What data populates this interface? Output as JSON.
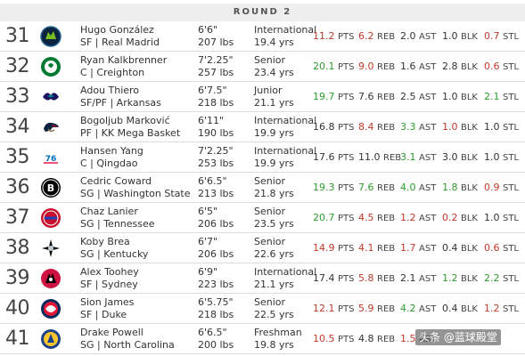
{
  "round_label": "ROUND 2",
  "colors": {
    "neutral": "#333333",
    "red": "#c0392b",
    "green": "#2e9b2e"
  },
  "picks": [
    {
      "pick": "31",
      "team_logo": "timberwolves-logo-icon",
      "name": "Hugo González",
      "pos_school": "SF | Real Madrid",
      "height": "6'6\"",
      "weight": "207 lbs",
      "class": "International",
      "age": "19.4 yrs",
      "stats": {
        "pts": {
          "v": "11.2",
          "c": "r"
        },
        "reb": {
          "v": "6.2",
          "c": "r"
        },
        "ast": {
          "v": "2.0",
          "c": "n"
        },
        "blk": {
          "v": "1.0",
          "c": "n"
        },
        "stl": {
          "v": "0.7",
          "c": "r"
        }
      }
    },
    {
      "pick": "32",
      "team_logo": "celtics-logo-icon",
      "name": "Ryan Kalkbrenner",
      "pos_school": "C | Creighton",
      "height": "7'2.25\"",
      "weight": "257 lbs",
      "class": "Senior",
      "age": "23.4 yrs",
      "stats": {
        "pts": {
          "v": "20.1",
          "c": "g"
        },
        "reb": {
          "v": "9.0",
          "c": "r"
        },
        "ast": {
          "v": "1.6",
          "c": "n"
        },
        "blk": {
          "v": "2.8",
          "c": "n"
        },
        "stl": {
          "v": "0.6",
          "c": "r"
        }
      }
    },
    {
      "pick": "33",
      "team_logo": "hornets-logo-icon",
      "name": "Adou Thiero",
      "pos_school": "SF/PF | Arkansas",
      "height": "6'7.5\"",
      "weight": "218 lbs",
      "class": "Junior",
      "age": "21.1 yrs",
      "stats": {
        "pts": {
          "v": "19.7",
          "c": "g"
        },
        "reb": {
          "v": "7.6",
          "c": "n"
        },
        "ast": {
          "v": "2.5",
          "c": "n"
        },
        "blk": {
          "v": "1.0",
          "c": "n"
        },
        "stl": {
          "v": "2.1",
          "c": "g"
        }
      }
    },
    {
      "pick": "34",
      "team_logo": "pelicans-logo-icon",
      "name": "Bogoljub Marković",
      "pos_school": "PF | KK Mega Basket",
      "height": "6'11\"",
      "weight": "190 lbs",
      "class": "International",
      "age": "19.9 yrs",
      "stats": {
        "pts": {
          "v": "16.8",
          "c": "n"
        },
        "reb": {
          "v": "8.4",
          "c": "r"
        },
        "ast": {
          "v": "3.3",
          "c": "g"
        },
        "blk": {
          "v": "1.0",
          "c": "r"
        },
        "stl": {
          "v": "1.0",
          "c": "n"
        }
      }
    },
    {
      "pick": "35",
      "team_logo": "76ers-logo-icon",
      "name": "Hansen Yang",
      "pos_school": "C | Qingdao",
      "height": "7'2.25\"",
      "weight": "253 lbs",
      "class": "International",
      "age": "19.9 yrs",
      "stats": {
        "pts": {
          "v": "17.6",
          "c": "n"
        },
        "reb": {
          "v": "11.0",
          "c": "n"
        },
        "ast": {
          "v": "3.1",
          "c": "g"
        },
        "blk": {
          "v": "3.0",
          "c": "n"
        },
        "stl": {
          "v": "1.0",
          "c": "n"
        }
      }
    },
    {
      "pick": "36",
      "team_logo": "nets-logo-icon",
      "name": "Cedric Coward",
      "pos_school": "SG | Washington State",
      "height": "6'6.5\"",
      "weight": "213 lbs",
      "class": "Senior",
      "age": "21.8 yrs",
      "stats": {
        "pts": {
          "v": "19.3",
          "c": "g"
        },
        "reb": {
          "v": "7.6",
          "c": "g"
        },
        "ast": {
          "v": "4.0",
          "c": "g"
        },
        "blk": {
          "v": "1.8",
          "c": "g"
        },
        "stl": {
          "v": "0.9",
          "c": "r"
        }
      }
    },
    {
      "pick": "37",
      "team_logo": "pistons-logo-icon",
      "name": "Chaz Lanier",
      "pos_school": "SG | Tennessee",
      "height": "6'5\"",
      "weight": "206 lbs",
      "class": "Senior",
      "age": "23.5 yrs",
      "stats": {
        "pts": {
          "v": "20.7",
          "c": "g"
        },
        "reb": {
          "v": "4.5",
          "c": "r"
        },
        "ast": {
          "v": "1.2",
          "c": "r"
        },
        "blk": {
          "v": "0.2",
          "c": "r"
        },
        "stl": {
          "v": "1.0",
          "c": "n"
        }
      }
    },
    {
      "pick": "38",
      "team_logo": "spurs-logo-icon",
      "name": "Koby Brea",
      "pos_school": "SG | Kentucky",
      "height": "6'7\"",
      "weight": "206 lbs",
      "class": "Senior",
      "age": "22.6 yrs",
      "stats": {
        "pts": {
          "v": "14.9",
          "c": "r"
        },
        "reb": {
          "v": "4.1",
          "c": "r"
        },
        "ast": {
          "v": "1.7",
          "c": "r"
        },
        "blk": {
          "v": "0.4",
          "c": "n"
        },
        "stl": {
          "v": "0.6",
          "c": "r"
        }
      }
    },
    {
      "pick": "39",
      "team_logo": "raptors-logo-icon",
      "name": "Alex Toohey",
      "pos_school": "SF | Sydney",
      "height": "6'9\"",
      "weight": "223 lbs",
      "class": "International",
      "age": "21.1 yrs",
      "stats": {
        "pts": {
          "v": "17.4",
          "c": "n"
        },
        "reb": {
          "v": "5.8",
          "c": "r"
        },
        "ast": {
          "v": "2.1",
          "c": "n"
        },
        "blk": {
          "v": "1.2",
          "c": "g"
        },
        "stl": {
          "v": "2.2",
          "c": "g"
        }
      }
    },
    {
      "pick": "40",
      "team_logo": "wizards-logo-icon",
      "name": "Sion James",
      "pos_school": "SF | Duke",
      "height": "6'5.75\"",
      "weight": "218 lbs",
      "class": "Senior",
      "age": "22.5 yrs",
      "stats": {
        "pts": {
          "v": "12.1",
          "c": "r"
        },
        "reb": {
          "v": "5.9",
          "c": "r"
        },
        "ast": {
          "v": "4.2",
          "c": "g"
        },
        "blk": {
          "v": "0.4",
          "c": "n"
        },
        "stl": {
          "v": "1.2",
          "c": "r"
        }
      }
    },
    {
      "pick": "41",
      "team_logo": "warriors-logo-icon",
      "name": "Drake Powell",
      "pos_school": "SG | North Carolina",
      "height": "6'6.5\"",
      "weight": "200 lbs",
      "class": "Freshman",
      "age": "19.8 yrs",
      "stats": {
        "pts": {
          "v": "10.5",
          "c": "r"
        },
        "reb": {
          "v": "4.8",
          "c": "n"
        },
        "ast": {
          "v": "1.5",
          "c": "r"
        },
        "blk": {
          "v": "",
          "c": "n"
        },
        "stl": {
          "v": "",
          "c": "n"
        }
      }
    }
  ],
  "stat_units": {
    "pts": "PTS",
    "reb": "REB",
    "ast": "AST",
    "blk": "BLK",
    "stl": "STL"
  },
  "watermark": "头条 @蓝球殿堂"
}
